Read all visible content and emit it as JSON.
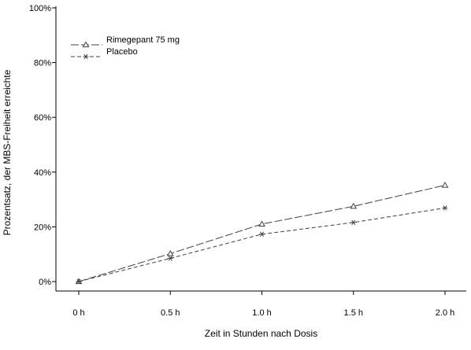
{
  "chart_data": {
    "type": "line",
    "title": "",
    "xlabel": "Zeit in Stunden nach Dosis",
    "ylabel": "Prozentsatz, der MBS-Freiheit erreichte",
    "categories": [
      "0 h",
      "0.5 h",
      "1.0 h",
      "1.5 h",
      "2.0 h"
    ],
    "x": [
      0,
      0.5,
      1.0,
      1.5,
      2.0
    ],
    "ylim": [
      0,
      100
    ],
    "yticks": [
      "0%",
      "20%",
      "40%",
      "60%",
      "80%",
      "100%"
    ],
    "ytick_values": [
      0,
      20,
      40,
      60,
      80,
      100
    ],
    "grid": false,
    "legend_position": "top-left",
    "series": [
      {
        "name": "Rimegepant 75 mg",
        "marker": "triangle",
        "dash": "long-dash",
        "color": "#404040",
        "values": [
          0,
          10.2,
          21.0,
          27.5,
          35.2
        ]
      },
      {
        "name": "Placebo",
        "marker": "asterisk",
        "dash": "short-dash",
        "color": "#404040",
        "values": [
          0,
          8.5,
          17.3,
          21.6,
          26.9
        ]
      }
    ]
  }
}
